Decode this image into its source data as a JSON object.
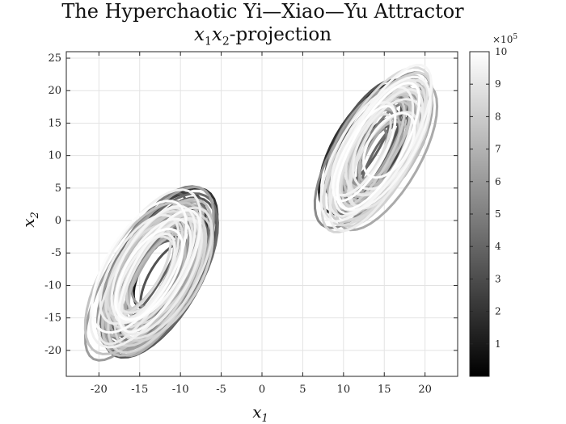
{
  "chart_data": {
    "type": "line",
    "title": "The Hyperchaotic Yi—Xiao—Yu Attractor",
    "subtitle_parts": {
      "a": "x",
      "a_sub": "1",
      "b": "x",
      "b_sub": "2",
      "rest": "-projection"
    },
    "xlabel": {
      "base": "x",
      "sub": "1"
    },
    "ylabel": {
      "base": "x",
      "sub": "2"
    },
    "xlim": [
      -24,
      24
    ],
    "ylim": [
      -24,
      26
    ],
    "xticks": [
      -20,
      -15,
      -10,
      -5,
      0,
      5,
      10,
      15,
      20
    ],
    "yticks": [
      -20,
      -15,
      -10,
      -5,
      0,
      5,
      10,
      15,
      20,
      25
    ],
    "grid": true,
    "colormap": "gray",
    "colorbar": {
      "range": [
        0,
        10
      ],
      "ticks": [
        1,
        2,
        3,
        4,
        5,
        6,
        7,
        8,
        9,
        10
      ],
      "multiplier_base": "×10",
      "multiplier_exp": "5"
    },
    "trajectory_notes": "Double-scroll attractor: left lobe centered near (-13,-8), right lobe near (14,11); colour encodes time step 0 to 1e6 (dark = early, light = late).",
    "lobes": [
      {
        "name": "left",
        "cx": -13.5,
        "cy": -8,
        "rx": 9.5,
        "ry": 15.5,
        "tilt_deg": 35
      },
      {
        "name": "right",
        "cx": 14,
        "cy": 11,
        "rx": 8.5,
        "ry": 14.5,
        "tilt_deg": 35
      }
    ]
  }
}
